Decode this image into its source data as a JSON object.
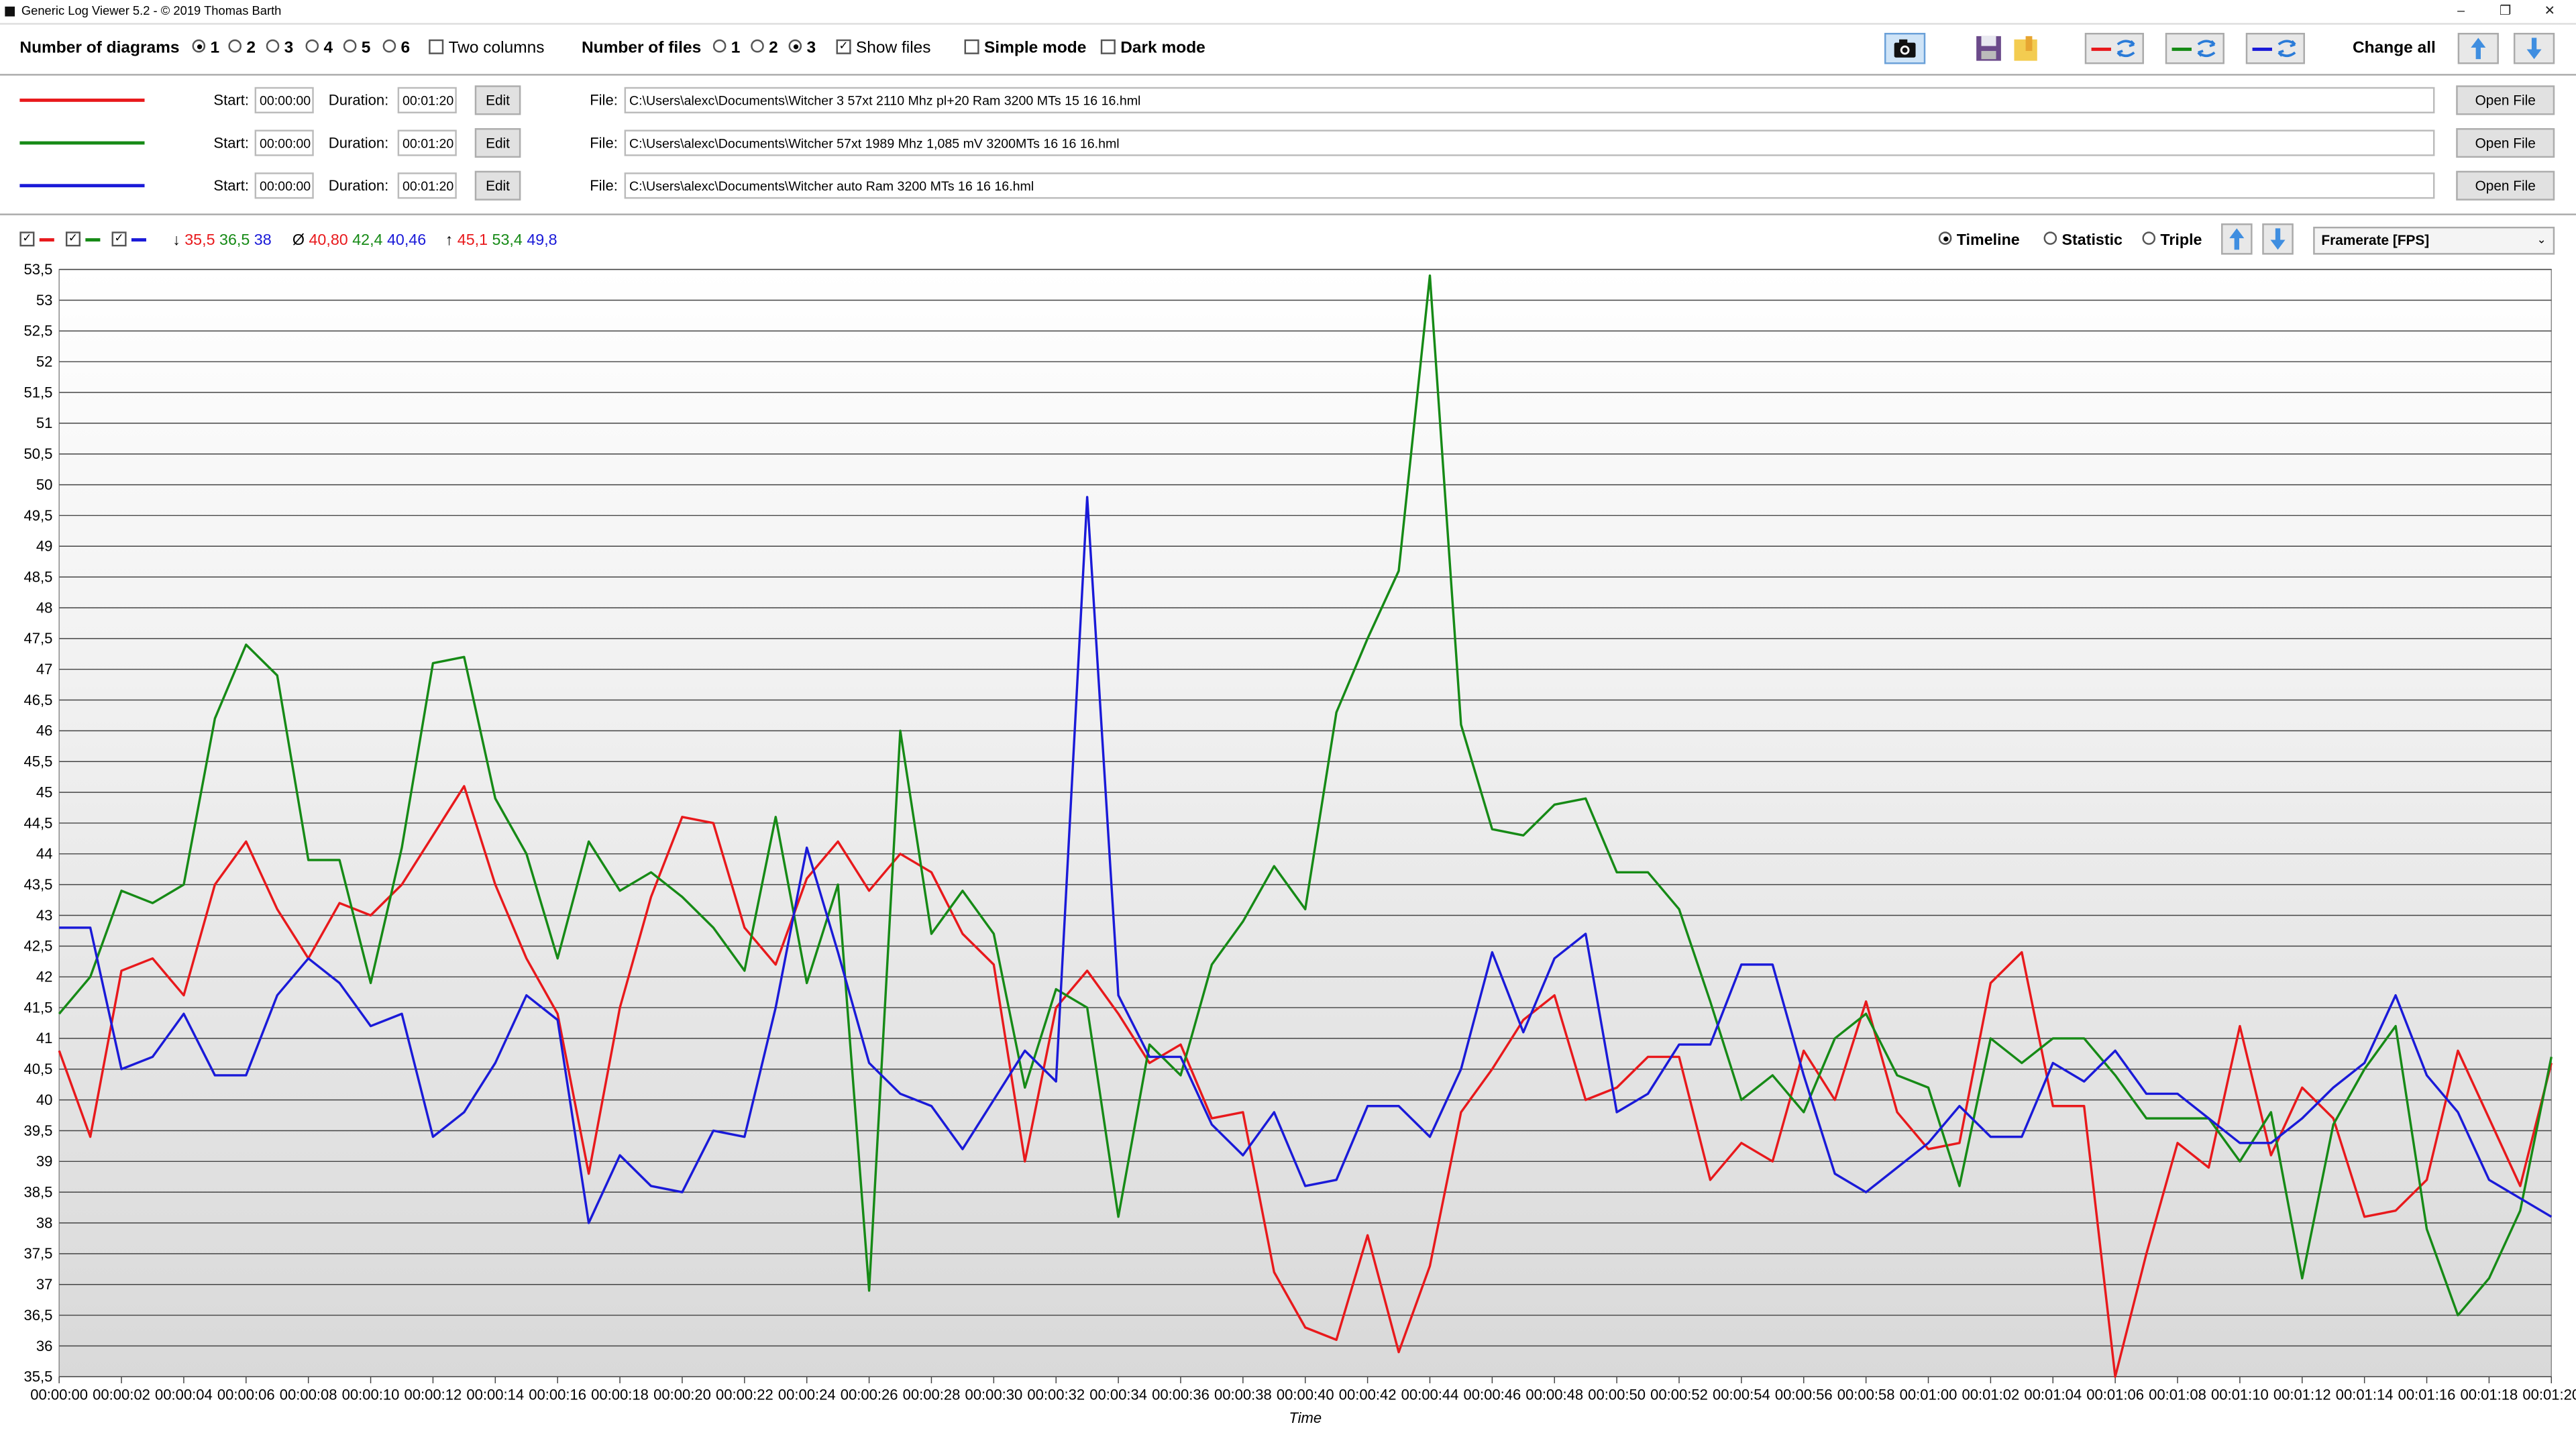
{
  "window": {
    "title": "Generic Log Viewer 5.2 - © 2019 Thomas Barth",
    "controls": [
      "–",
      "❐",
      "✕"
    ]
  },
  "toolbar": {
    "num_diagrams_label": "Number of diagrams",
    "diagram_options": [
      "1",
      "2",
      "3",
      "4",
      "5",
      "6"
    ],
    "diagram_selected": "1",
    "two_columns_label": "Two columns",
    "num_files_label": "Number of files",
    "file_options": [
      "1",
      "2",
      "3"
    ],
    "files_selected": "3",
    "show_files_label": "Show files",
    "simple_mode_label": "Simple mode",
    "dark_mode_label": "Dark mode",
    "change_all_label": "Change all",
    "icons": [
      "camera-icon",
      "save-icon",
      "folder-icon",
      "swap-red-icon",
      "swap-green-icon",
      "swap-blue-icon",
      "arrow-up-icon",
      "arrow-down-icon"
    ]
  },
  "files": [
    {
      "color": "#e8191c",
      "start_label": "Start:",
      "start": "00:00:00",
      "duration_label": "Duration:",
      "duration": "00:01:20",
      "edit_label": "Edit",
      "file_label": "File:",
      "path": "C:\\Users\\alexc\\Documents\\Witcher 3 57xt 2110 Mhz pl+20 Ram 3200 MTs 15 16 16.hml",
      "open_label": "Open File"
    },
    {
      "color": "#168a16",
      "start_label": "Start:",
      "start": "00:00:00",
      "duration_label": "Duration:",
      "duration": "00:01:20",
      "edit_label": "Edit",
      "file_label": "File:",
      "path": "C:\\Users\\alexc\\Documents\\Witcher 57xt 1989 Mhz 1,085 mV 3200MTs 16 16 16.hml",
      "open_label": "Open File"
    },
    {
      "color": "#1a1ad8",
      "start_label": "Start:",
      "start": "00:00:00",
      "duration_label": "Duration:",
      "duration": "00:01:20",
      "edit_label": "Edit",
      "file_label": "File:",
      "path": "C:\\Users\\alexc\\Documents\\Witcher auto Ram 3200 MTs 16 16 16.hml",
      "open_label": "Open File"
    }
  ],
  "stats": {
    "min_symbol": "↓",
    "min": [
      "35,5",
      "36,5",
      "38"
    ],
    "avg_symbol": "Ø",
    "avg": [
      "40,80",
      "42,4",
      "40,46"
    ],
    "max_symbol": "↑",
    "max": [
      "45,1",
      "53,4",
      "49,8"
    ]
  },
  "view": {
    "timeline_label": "Timeline",
    "statistic_label": "Statistic",
    "triple_label": "Triple",
    "selected": "Timeline",
    "metric": "Framerate [FPS]"
  },
  "chart_data": {
    "type": "line",
    "xlabel": "Time",
    "ylabel": "",
    "ylim": [
      35.5,
      53.5
    ],
    "y_ticks": [
      "53,5",
      "53",
      "52,5",
      "52",
      "51,5",
      "51",
      "50,5",
      "50",
      "49,5",
      "49",
      "48,5",
      "48",
      "47,5",
      "47",
      "46,5",
      "46",
      "45,5",
      "45",
      "44,5",
      "44",
      "43,5",
      "43",
      "42,5",
      "42",
      "41,5",
      "41",
      "40,5",
      "40",
      "39,5",
      "39",
      "38,5",
      "38",
      "37,5",
      "37",
      "36,5",
      "36",
      "35,5"
    ],
    "x_ticks": [
      "00:00:00",
      "00:00:02",
      "00:00:04",
      "00:00:06",
      "00:00:08",
      "00:00:10",
      "00:00:12",
      "00:00:14",
      "00:00:16",
      "00:00:18",
      "00:00:20",
      "00:00:22",
      "00:00:24",
      "00:00:26",
      "00:00:28",
      "00:00:30",
      "00:00:32",
      "00:00:34",
      "00:00:36",
      "00:00:38",
      "00:00:40",
      "00:00:42",
      "00:00:44",
      "00:00:46",
      "00:00:48",
      "00:00:50",
      "00:00:52",
      "00:00:54",
      "00:00:56",
      "00:00:58",
      "00:01:00",
      "00:01:02",
      "00:01:04",
      "00:01:06",
      "00:01:08",
      "00:01:10",
      "00:01:12",
      "00:01:14",
      "00:01:16",
      "00:01:18",
      "00:01:20"
    ],
    "x_seconds": [
      0,
      1,
      2,
      3,
      4,
      5,
      6,
      7,
      8,
      9,
      10,
      11,
      12,
      13,
      14,
      15,
      16,
      17,
      18,
      19,
      20,
      21,
      22,
      23,
      24,
      25,
      26,
      27,
      28,
      29,
      30,
      31,
      32,
      33,
      34,
      35,
      36,
      37,
      38,
      39,
      40,
      41,
      42,
      43,
      44,
      45,
      46,
      47,
      48,
      49,
      50,
      51,
      52,
      53,
      54,
      55,
      56,
      57,
      58,
      59,
      60,
      61,
      62,
      63,
      64,
      65,
      66,
      67,
      68,
      69,
      70,
      71,
      72,
      73,
      74,
      75,
      76,
      77,
      78,
      79,
      80
    ],
    "grid": true,
    "series": [
      {
        "color": "#e8191c",
        "values": [
          40.8,
          39.4,
          42.1,
          42.3,
          41.7,
          43.5,
          44.2,
          43.1,
          42.3,
          43.2,
          43.0,
          43.5,
          44.3,
          45.1,
          43.5,
          42.3,
          41.4,
          38.8,
          41.5,
          43.3,
          44.6,
          44.5,
          42.8,
          42.2,
          43.6,
          44.2,
          43.4,
          44.0,
          43.7,
          42.7,
          42.2,
          39.0,
          41.5,
          42.1,
          41.4,
          40.6,
          40.9,
          39.7,
          39.8,
          37.2,
          36.3,
          36.1,
          37.8,
          35.9,
          37.3,
          39.8,
          40.5,
          41.3,
          41.7,
          40.0,
          40.2,
          40.7,
          40.7,
          38.7,
          39.3,
          39.0,
          40.8,
          40.0,
          41.6,
          39.8,
          39.2,
          39.3,
          41.9,
          42.4,
          39.9,
          39.9,
          35.5,
          37.5,
          39.3,
          38.9,
          41.2,
          39.1,
          40.2,
          39.7,
          38.1,
          38.2,
          38.7,
          40.8,
          39.7,
          38.6,
          40.6
        ]
      },
      {
        "color": "#168a16",
        "values": [
          41.4,
          42.0,
          43.4,
          43.2,
          43.5,
          46.2,
          47.4,
          46.9,
          43.9,
          43.9,
          41.9,
          44.1,
          47.1,
          47.2,
          44.9,
          44.0,
          42.3,
          44.2,
          43.4,
          43.7,
          43.3,
          42.8,
          42.1,
          44.6,
          41.9,
          43.5,
          36.9,
          46.0,
          42.7,
          43.4,
          42.7,
          40.2,
          41.8,
          41.5,
          38.1,
          40.9,
          40.4,
          42.2,
          42.9,
          43.8,
          43.1,
          46.3,
          47.5,
          48.6,
          53.4,
          46.1,
          44.4,
          44.3,
          44.8,
          44.9,
          43.7,
          43.7,
          43.1,
          41.6,
          40.0,
          40.4,
          39.8,
          41.0,
          41.4,
          40.4,
          40.2,
          38.6,
          41.0,
          40.6,
          41.0,
          41.0,
          40.4,
          39.7,
          39.7,
          39.7,
          39.0,
          39.8,
          37.1,
          39.6,
          40.5,
          41.2,
          37.9,
          36.5,
          37.1,
          38.2,
          40.7
        ]
      },
      {
        "color": "#1a1ad8",
        "values": [
          42.8,
          42.8,
          40.5,
          40.7,
          41.4,
          40.4,
          40.4,
          41.7,
          42.3,
          41.9,
          41.2,
          41.4,
          39.4,
          39.8,
          40.6,
          41.7,
          41.3,
          38.0,
          39.1,
          38.6,
          38.5,
          39.5,
          39.4,
          41.5,
          44.1,
          42.4,
          40.6,
          40.1,
          39.9,
          39.2,
          40.0,
          40.8,
          40.3,
          49.8,
          41.7,
          40.7,
          40.7,
          39.6,
          39.1,
          39.8,
          38.6,
          38.7,
          39.9,
          39.9,
          39.4,
          40.5,
          42.4,
          41.1,
          42.3,
          42.7,
          39.8,
          40.1,
          40.9,
          40.9,
          42.2,
          42.2,
          40.4,
          38.8,
          38.5,
          38.9,
          39.3,
          39.9,
          39.4,
          39.4,
          40.6,
          40.3,
          40.8,
          40.1,
          40.1,
          39.7,
          39.3,
          39.3,
          39.7,
          40.2,
          40.6,
          41.7,
          40.4,
          39.8,
          38.7,
          38.4,
          38.1
        ]
      }
    ]
  }
}
